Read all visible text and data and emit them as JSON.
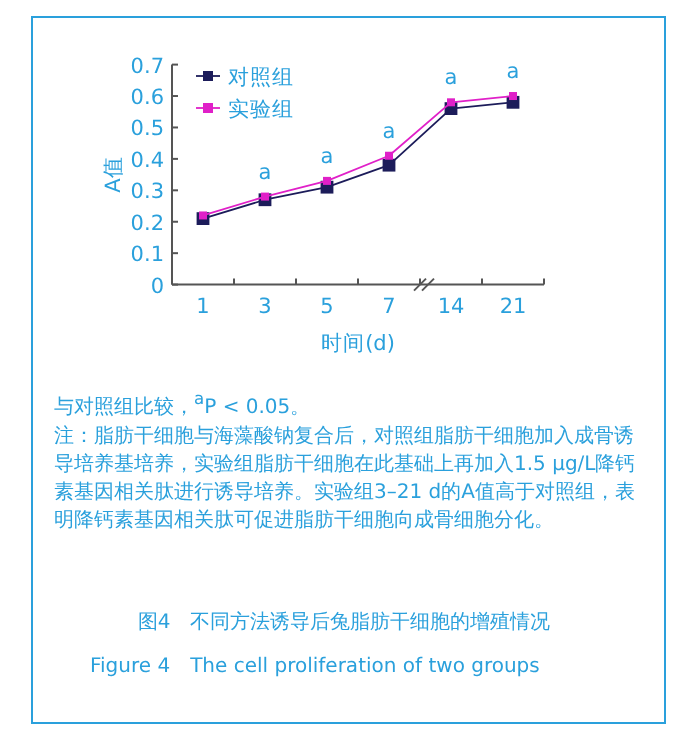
{
  "chart_data": {
    "type": "line",
    "title": "图4　不同方法诱导后兔脂肪干细胞的增殖情况",
    "subtitle": "Figure 4　The cell proliferation of two groups",
    "xlabel": "时间(d)",
    "ylabel": "A值",
    "categories": [
      "1",
      "3",
      "5",
      "7",
      "14",
      "21"
    ],
    "series": [
      {
        "name": "对照组",
        "color": "#1c1c5a",
        "values": [
          0.21,
          0.27,
          0.31,
          0.38,
          0.56,
          0.58
        ]
      },
      {
        "name": "实验组",
        "color": "#e020c8",
        "values": [
          0.22,
          0.28,
          0.33,
          0.41,
          0.58,
          0.6
        ]
      }
    ],
    "ylim": [
      0,
      0.7
    ],
    "yticks": [
      0,
      0.1,
      0.2,
      0.3,
      0.4,
      0.5,
      0.6,
      0.7
    ],
    "marker": "square",
    "legend": "top left",
    "grid": false,
    "annotations": [
      {
        "text": "a",
        "x": "3",
        "y": 0.28
      },
      {
        "text": "a",
        "x": "5",
        "y": 0.33
      },
      {
        "text": "a",
        "x": "7",
        "y": 0.41
      },
      {
        "text": "a",
        "x": "14",
        "y": 0.58
      },
      {
        "text": "a",
        "x": "21",
        "y": 0.6
      },
      "与对照组比较，$^{a}$P < 0.05。",
      "注：脂肪干细胞与海藻酸钠复合后，对照组脂肪干细胞加入成骨诱导培养基培养，实验组脂肪干细胞在此基础上再加入1.5 μg/L降钙素基因相关肽进行诱导培养。实验组3–21 d的A值高于对照组，表明降钙素基因相关肽可促进脂肪干细胞向成骨细胞分化。"
    ]
  }
}
